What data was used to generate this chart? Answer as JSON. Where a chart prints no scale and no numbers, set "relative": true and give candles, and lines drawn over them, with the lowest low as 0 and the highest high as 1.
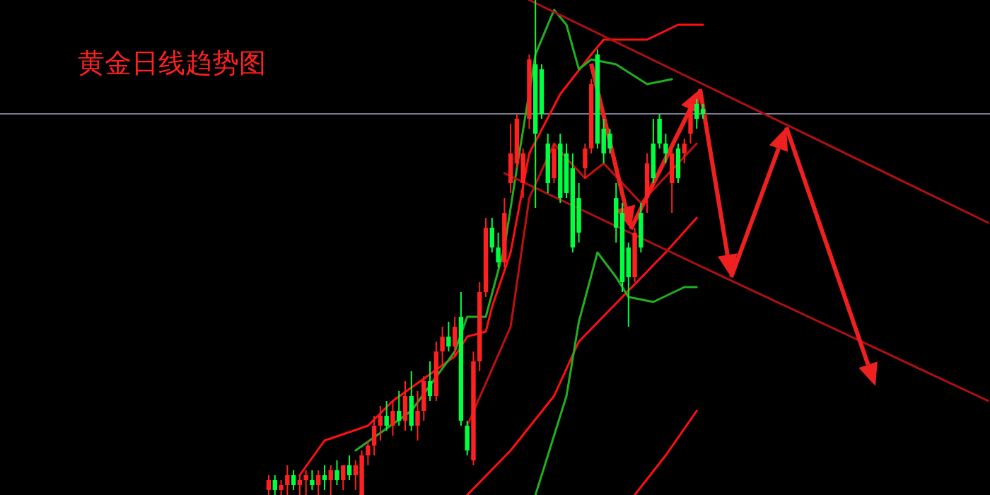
{
  "chart_data": {
    "type": "candlestick",
    "title": "黄金日线趋势图",
    "relative": true,
    "categories": [
      null,
      null,
      null,
      null,
      null,
      null,
      null,
      null,
      null,
      null,
      null,
      null,
      null,
      null,
      null,
      null,
      null,
      null,
      null,
      null,
      null,
      null,
      null,
      null,
      null,
      null,
      null,
      null,
      null,
      null,
      null,
      null,
      null,
      null,
      null,
      null,
      null,
      null,
      null,
      null,
      null,
      null,
      null,
      null,
      null,
      null,
      null,
      null,
      null,
      null,
      null,
      null,
      null,
      null,
      null,
      null,
      null,
      null,
      null,
      null,
      null,
      null,
      null,
      null,
      null,
      null,
      null,
      null,
      null,
      null,
      null,
      null,
      null,
      null,
      null,
      null,
      null,
      null,
      null,
      null,
      null,
      null,
      null,
      null,
      null,
      null,
      null,
      null,
      null,
      null,
      null,
      null,
      null,
      null,
      null,
      null,
      null,
      null,
      null,
      null,
      null,
      null,
      null,
      null,
      null,
      null,
      null,
      null,
      null,
      null,
      null,
      null,
      null,
      null,
      null,
      null,
      null
    ],
    "ohlc": [
      [
        0.01,
        0.04,
        0,
        0.03
      ],
      [
        0.03,
        0.04,
        0,
        0.01
      ],
      [
        0.01,
        0.03,
        0,
        0.02
      ],
      [
        0.02,
        0.06,
        0,
        0.04
      ],
      [
        0.04,
        0.05,
        0.01,
        0.02
      ],
      [
        0.02,
        0.04,
        0,
        0.03
      ],
      [
        0.03,
        0.05,
        0,
        0.04
      ],
      [
        0.03,
        0.05,
        0.01,
        0.02
      ],
      [
        0.02,
        0.05,
        0,
        0.04
      ],
      [
        0.04,
        0.06,
        0.01,
        0.03
      ],
      [
        0.03,
        0.06,
        0,
        0.05
      ],
      [
        0.05,
        0.07,
        0.02,
        0.03
      ],
      [
        0.03,
        0.06,
        0.01,
        0.06
      ],
      [
        0.06,
        0.08,
        0.03,
        0.04
      ],
      [
        0.04,
        0.07,
        0.01,
        0.06
      ],
      [
        0,
        0.09,
        0,
        0.08
      ],
      [
        0.08,
        0.11,
        0.06,
        0.1
      ],
      [
        0.1,
        0.16,
        0.08,
        0.14
      ],
      [
        0.14,
        0.18,
        0.11,
        0.16
      ],
      [
        0.16,
        0.19,
        0.13,
        0.14
      ],
      [
        0.14,
        0.19,
        0.12,
        0.17
      ],
      [
        0.17,
        0.21,
        0.14,
        0.15
      ],
      [
        0.15,
        0.23,
        0.13,
        0.2
      ],
      [
        0.2,
        0.25,
        0.13,
        0.14
      ],
      [
        0.14,
        0.21,
        0.11,
        0.17
      ],
      [
        0.17,
        0.24,
        0.15,
        0.23
      ],
      [
        0.23,
        0.27,
        0.19,
        0.2
      ],
      [
        0.2,
        0.31,
        0.19,
        0.29
      ],
      [
        0.29,
        0.34,
        0.26,
        0.32
      ],
      [
        0.32,
        0.35,
        0.29,
        0.3
      ],
      [
        0.3,
        0.36,
        0.28,
        0.34
      ],
      [
        0.36,
        0.41,
        0.14,
        0.15
      ],
      [
        0.14,
        0.15,
        0.08,
        0.09
      ],
      [
        0.07,
        0.29,
        0.06,
        0.27
      ],
      [
        0.27,
        0.43,
        0.25,
        0.41
      ],
      [
        0.41,
        0.56,
        0.4,
        0.54
      ],
      [
        0.54,
        0.56,
        0.49,
        0.5
      ],
      [
        0.5,
        0.53,
        0.46,
        0.47
      ],
      [
        0.47,
        0.6,
        0.46,
        0.57
      ],
      [
        0.63,
        0.75,
        0.61,
        0.69
      ],
      [
        0.67,
        0.77,
        0.66,
        0.76
      ],
      [
        0.63,
        0.7,
        0.6,
        0.69
      ],
      [
        0.76,
        0.89,
        0.74,
        0.88
      ],
      [
        0.87,
        1,
        0.58,
        0.73
      ],
      [
        0.86,
        0.87,
        0.76,
        0.77
      ],
      [
        0.71,
        0.73,
        0.61,
        0.63
      ],
      [
        0.64,
        0.71,
        0.63,
        0.7
      ],
      [
        0.71,
        0.73,
        0.59,
        0.6
      ],
      [
        0.69,
        0.71,
        0.6,
        0.61
      ],
      [
        0.66,
        0.69,
        0.49,
        0.5
      ],
      [
        0.6,
        0.63,
        0.51,
        0.53
      ],
      [
        0.66,
        0.71,
        0.64,
        0.7
      ],
      [
        0.7,
        0.84,
        0.69,
        0.83
      ],
      [
        0.89,
        0.9,
        0.7,
        0.71
      ],
      [
        0.74,
        0.76,
        0.67,
        0.69
      ],
      [
        0.73,
        0.74,
        0.69,
        0.7
      ],
      [
        0.6,
        0.63,
        0.51,
        0.54
      ],
      [
        0.57,
        0.59,
        0.41,
        0.43
      ],
      [
        0.5,
        0.51,
        0.34,
        0.44
      ],
      [
        0.44,
        0.54,
        0.43,
        0.53
      ],
      [
        0.57,
        0.59,
        0.49,
        0.5
      ],
      [
        0.6,
        0.69,
        0.57,
        0.67
      ],
      [
        0.71,
        0.76,
        0.63,
        0.64
      ],
      [
        0.76,
        0.77,
        0.7,
        0.71
      ],
      [
        0.71,
        0.73,
        0.67,
        0.69
      ],
      [
        0.63,
        0.7,
        0.57,
        0.69
      ],
      [
        0.7,
        0.71,
        0.63,
        0.64
      ],
      [
        0.69,
        0.72,
        0.67,
        0.71
      ],
      [
        0.73,
        0.8,
        0.71,
        0.79
      ],
      [
        0.79,
        0.8,
        0.74,
        0.76
      ],
      [
        0.78,
        0.79,
        0.76,
        0.77
      ],
      null,
      null,
      null,
      null,
      null,
      null,
      null,
      null,
      null,
      null,
      null,
      null,
      null,
      null,
      null,
      null,
      null,
      null,
      null,
      null,
      null,
      null,
      null,
      null,
      null,
      null,
      null,
      null,
      null,
      null,
      null,
      null,
      null,
      null,
      null,
      null,
      null,
      null,
      null,
      null,
      null,
      null,
      null,
      null,
      null,
      null
    ],
    "colors": [
      "#ff2020",
      "#00ff40",
      "#ff2020",
      "#ff2020",
      "#00ff40",
      "#ff2020",
      "#ff2020",
      "#00ff40",
      "#ff2020",
      "#00ff40",
      "#ff2020",
      "#00ff40",
      "#ff2020",
      "#00ff40",
      "#ff2020",
      "#ff2020",
      "#ff2020",
      "#ff2020",
      "#ff2020",
      "#00ff40",
      "#ff2020",
      "#00ff40",
      "#ff2020",
      "#00ff40",
      "#ff2020",
      "#ff2020",
      "#00ff40",
      "#ff2020",
      "#ff2020",
      "#00ff40",
      "#ff2020",
      "#00ff40",
      "#00ff40",
      "#ff2020",
      "#ff2020",
      "#ff2020",
      "#00ff40",
      "#00ff40",
      "#ff2020",
      "#ff2020",
      "#ff2020",
      "#ff2020",
      "#ff2020",
      "#00ff40",
      "#00ff40",
      "#00ff40",
      "#ff2020",
      "#00ff40",
      "#00ff40",
      "#00ff40",
      "#00ff40",
      "#ff2020",
      "#ff2020",
      "#00ff40",
      "#00ff40",
      "#00ff40",
      "#00ff40",
      "#00ff40",
      "#00ff40",
      "#ff2020",
      "#00ff40",
      "#ff2020",
      "#00ff40",
      "#00ff40",
      "#00ff40",
      "#ff2020",
      "#00ff40",
      "#ff2020",
      "#ff2020",
      "#00ff40",
      "#00ff40",
      null,
      null,
      null,
      null,
      null,
      null,
      null,
      null,
      null,
      null,
      null,
      null,
      null,
      null,
      null,
      null,
      null,
      null,
      null,
      null,
      null,
      null,
      null,
      null,
      null,
      null,
      null,
      null,
      null,
      null,
      null,
      null,
      null,
      null,
      null,
      null,
      null,
      null,
      null,
      null,
      null,
      null,
      null,
      null,
      null,
      null
    ],
    "series": [
      {
        "type": "line",
        "color": "#ff1010",
        "values": [
          null,
          null,
          null,
          null,
          null,
          0.04,
          null,
          null,
          null,
          0.11,
          null,
          null,
          null,
          null,
          null,
          null,
          0.14,
          null,
          null,
          null,
          0.19,
          null,
          null,
          null,
          null,
          null,
          null,
          null,
          null,
          null,
          0.28,
          null,
          0.32,
          null,
          null,
          0.33,
          0.38,
          null,
          null,
          0.49,
          null,
          null,
          0.69,
          null,
          null,
          null,
          null,
          0.81,
          null,
          null,
          null,
          null,
          0.89,
          null,
          0.92,
          null,
          null,
          null,
          null,
          null,
          null,
          0.92,
          null,
          null,
          null,
          null,
          0.95,
          null,
          null,
          null,
          0.95,
          null,
          null,
          null,
          null,
          null,
          null,
          null,
          null,
          null,
          null,
          null,
          null,
          null,
          null,
          null,
          null,
          null,
          null,
          null,
          null,
          null,
          null,
          null,
          null,
          null,
          null,
          null,
          null,
          null,
          null,
          null,
          null,
          null,
          null,
          null,
          null,
          null,
          null,
          null,
          null,
          null,
          null,
          null,
          null,
          null,
          null
        ]
      },
      {
        "type": "line",
        "color": "#ff1010",
        "values": [
          null,
          null,
          null,
          null,
          null,
          null,
          null,
          null,
          null,
          null,
          null,
          null,
          null,
          null,
          null,
          null,
          null,
          null,
          null,
          null,
          null,
          null,
          null,
          null,
          null,
          null,
          null,
          null,
          null,
          null,
          null,
          null,
          0,
          null,
          null,
          null,
          null,
          null,
          null,
          0.09,
          null,
          null,
          null,
          null,
          null,
          null,
          0.2,
          null,
          null,
          null,
          0.31,
          null,
          null,
          null,
          null,
          null,
          null,
          0.4,
          null,
          null,
          null,
          null,
          null,
          null,
          0.49,
          null,
          null,
          null,
          null,
          0.56,
          null,
          null,
          null,
          null,
          null,
          null,
          null,
          null,
          null,
          null,
          null,
          null,
          null,
          null,
          null,
          null,
          null,
          null,
          null,
          null,
          null,
          null,
          null,
          null,
          null,
          null,
          null,
          null,
          null,
          null,
          null,
          null,
          null,
          null,
          null,
          null,
          null,
          null,
          null,
          null,
          null,
          null,
          null,
          null,
          null,
          null,
          null
        ]
      },
      {
        "type": "line",
        "color": "#ff1010",
        "values": [
          null,
          null,
          null,
          null,
          null,
          null,
          null,
          null,
          null,
          null,
          null,
          null,
          null,
          null,
          null,
          null,
          null,
          null,
          null,
          null,
          null,
          null,
          null,
          null,
          null,
          null,
          null,
          null,
          null,
          null,
          null,
          null,
          null,
          null,
          null,
          null,
          null,
          null,
          null,
          null,
          null,
          null,
          null,
          null,
          null,
          null,
          null,
          null,
          null,
          null,
          null,
          null,
          null,
          null,
          null,
          null,
          null,
          null,
          null,
          0,
          null,
          null,
          null,
          null,
          0.08,
          null,
          null,
          null,
          null,
          0.17,
          null,
          null,
          null,
          null,
          null,
          null,
          null,
          null,
          null,
          null,
          null,
          null,
          null,
          null,
          null,
          null,
          null,
          null,
          null,
          null,
          null,
          null,
          null,
          null,
          null,
          null,
          null,
          null,
          null,
          null,
          null,
          null,
          null,
          null,
          null,
          null,
          null,
          null,
          null,
          null,
          null,
          null,
          null,
          null,
          null,
          null,
          null
        ]
      },
      {
        "type": "line",
        "color": "#c01010",
        "values": [
          null,
          null,
          null,
          null,
          null,
          null,
          null,
          null,
          null,
          null,
          null,
          null,
          null,
          null,
          null,
          null,
          null,
          null,
          null,
          null,
          null,
          null,
          null,
          null,
          null,
          null,
          null,
          null,
          null,
          null,
          null,
          null,
          0.14,
          null,
          null,
          null,
          null,
          null,
          null,
          0.34,
          null,
          null,
          0.6,
          null,
          null,
          null,
          0.71,
          null,
          0.68,
          null,
          null,
          0.64,
          null,
          null,
          0.67,
          null,
          null,
          0.63,
          null,
          null,
          0.59,
          null,
          null,
          null,
          null,
          null,
          0.67,
          null,
          null,
          0.71,
          null,
          null,
          null,
          null,
          null,
          null,
          null,
          null,
          null,
          null,
          null,
          null,
          null,
          null,
          null,
          null,
          null,
          null,
          null,
          null,
          null,
          null,
          null,
          null,
          null,
          null,
          null,
          null,
          null,
          null,
          null,
          null,
          null,
          null,
          null,
          null,
          null,
          null,
          null,
          null,
          null,
          null,
          null,
          null,
          null,
          null,
          null
        ]
      },
      {
        "type": "line",
        "color": "#20b020",
        "values": [
          null,
          null,
          null,
          null,
          null,
          null,
          null,
          null,
          null,
          null,
          null,
          null,
          null,
          null,
          0.09,
          null,
          null,
          null,
          null,
          null,
          null,
          null,
          null,
          0.17,
          null,
          null,
          null,
          null,
          null,
          null,
          0.29,
          null,
          0.36,
          null,
          null,
          0.36,
          null,
          null,
          0.5,
          null,
          0.66,
          null,
          null,
          0.89,
          null,
          null,
          0.98,
          null,
          0.95,
          null,
          0.86,
          null,
          0.88,
          null,
          null,
          null,
          0.87,
          null,
          null,
          null,
          null,
          0.83,
          null,
          null,
          null,
          0.84,
          null,
          null,
          null,
          null,
          null,
          null,
          null,
          null,
          null,
          null,
          null,
          null,
          null,
          null,
          null,
          null,
          null,
          null,
          null,
          null,
          null,
          null,
          null,
          null,
          null,
          null,
          null,
          null,
          null,
          null,
          null,
          null,
          null,
          null,
          null,
          null,
          null,
          null,
          null,
          null,
          null,
          null,
          null,
          null,
          null,
          null,
          null,
          null,
          null,
          null,
          null
        ]
      },
      {
        "type": "line",
        "color": "#20b020",
        "values": [
          null,
          null,
          null,
          null,
          null,
          null,
          null,
          null,
          null,
          null,
          null,
          null,
          null,
          null,
          null,
          null,
          null,
          null,
          null,
          null,
          null,
          null,
          null,
          null,
          null,
          null,
          null,
          null,
          null,
          null,
          null,
          null,
          null,
          null,
          null,
          null,
          null,
          null,
          null,
          null,
          null,
          null,
          null,
          0,
          null,
          null,
          null,
          null,
          0.2,
          null,
          0.35,
          null,
          null,
          0.49,
          null,
          null,
          0.44,
          null,
          0.4,
          null,
          null,
          null,
          0.39,
          null,
          null,
          null,
          null,
          0.42,
          null,
          0.42,
          null,
          null,
          null,
          null,
          null,
          null,
          null,
          null,
          null,
          null,
          null,
          null,
          null,
          null,
          null,
          null,
          null,
          null,
          null,
          null,
          null,
          null,
          null,
          null,
          null,
          null,
          null,
          null,
          null,
          null,
          null,
          null,
          null,
          null,
          null,
          null,
          null,
          null,
          null,
          null,
          null,
          null,
          null,
          null,
          null,
          null,
          null
        ]
      },
      {
        "type": "line",
        "color": "#b01010",
        "values": [
          null,
          null,
          null,
          null,
          null,
          null,
          null,
          null,
          null,
          null,
          null,
          null,
          null,
          null,
          null,
          null,
          null,
          null,
          null,
          null,
          null,
          null,
          null,
          null,
          null,
          null,
          null,
          null,
          null,
          null,
          null,
          null,
          null,
          null,
          null,
          null,
          null,
          null,
          null,
          null,
          null,
          null,
          1,
          null,
          null,
          null,
          null,
          null,
          null,
          null,
          null,
          null,
          null,
          null,
          null,
          null,
          null,
          null,
          null,
          null,
          null,
          null,
          null,
          null,
          null,
          null,
          null,
          null,
          null,
          null,
          0.83,
          null,
          null,
          null,
          null,
          null,
          null,
          null,
          null,
          null,
          null,
          null,
          null,
          null,
          null,
          null,
          null,
          null,
          null,
          null,
          null,
          null,
          null,
          null,
          null,
          null,
          null,
          null,
          null,
          null,
          null,
          null,
          null,
          null,
          null,
          null,
          null,
          null,
          null,
          null,
          null,
          null,
          null,
          null,
          null,
          null,
          0.55
        ]
      },
      {
        "type": "line",
        "color": "#b01010",
        "values": [
          null,
          null,
          null,
          null,
          null,
          null,
          null,
          null,
          null,
          null,
          null,
          null,
          null,
          null,
          null,
          null,
          null,
          null,
          null,
          null,
          null,
          null,
          null,
          null,
          null,
          null,
          null,
          null,
          null,
          null,
          null,
          null,
          null,
          null,
          null,
          null,
          null,
          null,
          0.65,
          null,
          null,
          null,
          null,
          null,
          null,
          null,
          null,
          null,
          null,
          null,
          null,
          null,
          null,
          null,
          null,
          null,
          null,
          null,
          null,
          null,
          null,
          null,
          null,
          null,
          null,
          null,
          null,
          null,
          null,
          null,
          0.46,
          null,
          null,
          null,
          null,
          null,
          null,
          null,
          null,
          null,
          null,
          null,
          null,
          null,
          null,
          null,
          null,
          null,
          null,
          null,
          null,
          null,
          null,
          null,
          null,
          null,
          null,
          null,
          null,
          null,
          null,
          null,
          null,
          null,
          null,
          null,
          null,
          null,
          null,
          null,
          null,
          null,
          null,
          null,
          null,
          null,
          0.19
        ]
      }
    ],
    "ref_lines": [
      {
        "axis": "y",
        "value": 0.77,
        "color": "#7a7a90"
      }
    ]
  }
}
